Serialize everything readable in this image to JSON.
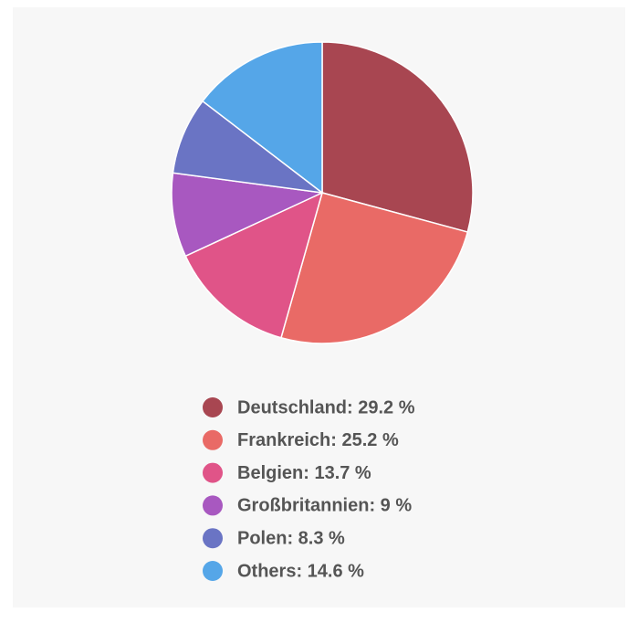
{
  "chart_data": {
    "type": "pie",
    "values": [
      29.2,
      25.2,
      13.7,
      9,
      8.3,
      14.6
    ],
    "value_labels": [
      "Deutschland: 29.2 %",
      "Frankreich: 25.2 %",
      "Belgien: 13.7 %",
      "Großbritannien: 9 %",
      "Polen: 8.3 %",
      "Others: 14.6 %"
    ],
    "colors": [
      "#a84651",
      "#e96a66",
      "#e05488",
      "#a858c0",
      "#6a74c4",
      "#55a6e8"
    ]
  }
}
